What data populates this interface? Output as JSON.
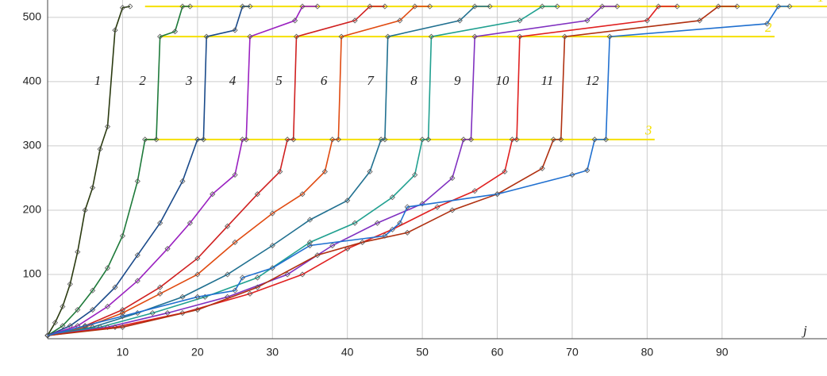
{
  "chart_data": {
    "type": "line",
    "x_label": "j",
    "xlim": [
      0,
      104
    ],
    "ylim": [
      0,
      527
    ],
    "xticks": [
      10,
      20,
      30,
      40,
      50,
      60,
      70,
      80,
      90
    ],
    "yticks": [
      100,
      200,
      300,
      400,
      500
    ],
    "grid": true,
    "reference_lines": [
      {
        "label": "1",
        "value": 517,
        "x": [
          13,
          104
        ],
        "color": "#f5e000"
      },
      {
        "label": "2",
        "value": 470,
        "x": [
          15,
          97
        ],
        "color": "#f5e000"
      },
      {
        "label": "3",
        "value": 310,
        "x": [
          13,
          81
        ],
        "color": "#f5e000"
      }
    ],
    "series": [
      {
        "name": "1",
        "color": "#2a3a10",
        "x": [
          0,
          1,
          2,
          3,
          4,
          5,
          6,
          7,
          8,
          9,
          10,
          11
        ],
        "values": [
          5,
          25,
          50,
          85,
          135,
          200,
          235,
          295,
          330,
          480,
          515,
          517
        ]
      },
      {
        "name": "2",
        "color": "#1e7a3a",
        "x": [
          0,
          2,
          4,
          6,
          8,
          10,
          12,
          13,
          14.5,
          15,
          17,
          18,
          19
        ],
        "values": [
          5,
          20,
          45,
          75,
          110,
          160,
          245,
          310,
          310,
          470,
          478,
          517,
          517
        ]
      },
      {
        "name": "3",
        "color": "#1a4a8a",
        "x": [
          0,
          3,
          6,
          9,
          12,
          15,
          18,
          20,
          20.8,
          21.2,
          25,
          26,
          27
        ],
        "values": [
          5,
          20,
          45,
          80,
          130,
          180,
          245,
          310,
          310,
          470,
          480,
          517,
          517
        ]
      },
      {
        "name": "4",
        "color": "#9a20c0",
        "x": [
          0,
          4,
          8,
          12,
          16,
          19,
          22,
          25,
          26,
          26.5,
          27,
          33,
          34,
          36
        ],
        "values": [
          5,
          20,
          50,
          90,
          140,
          180,
          225,
          255,
          310,
          310,
          470,
          495,
          517,
          517
        ]
      },
      {
        "name": "5",
        "color": "#d02020",
        "x": [
          0,
          5,
          10,
          15,
          20,
          24,
          28,
          31,
          32,
          32.8,
          33.2,
          41,
          43,
          45
        ],
        "values": [
          5,
          20,
          45,
          80,
          125,
          175,
          225,
          260,
          310,
          310,
          470,
          495,
          517,
          517
        ]
      },
      {
        "name": "6",
        "color": "#e04a10",
        "x": [
          0,
          5,
          10,
          15,
          20,
          25,
          30,
          34,
          37,
          38,
          38.8,
          39.2,
          47,
          49,
          51
        ],
        "values": [
          5,
          18,
          40,
          70,
          100,
          150,
          195,
          225,
          260,
          310,
          310,
          470,
          495,
          517,
          517
        ]
      },
      {
        "name": "7",
        "color": "#207090",
        "x": [
          0,
          6,
          12,
          18,
          24,
          30,
          35,
          40,
          43,
          44.5,
          45,
          45.4,
          55,
          57,
          59
        ],
        "values": [
          5,
          18,
          40,
          65,
          100,
          145,
          185,
          215,
          260,
          310,
          310,
          470,
          495,
          517,
          517
        ]
      },
      {
        "name": "8",
        "color": "#20a090",
        "x": [
          0,
          7,
          14,
          21,
          28,
          35,
          41,
          46,
          49,
          50,
          50.8,
          51.2,
          63,
          66,
          68
        ],
        "values": [
          5,
          18,
          40,
          65,
          95,
          150,
          180,
          220,
          255,
          310,
          310,
          470,
          495,
          517,
          517
        ]
      },
      {
        "name": "9",
        "color": "#8030c0",
        "x": [
          0,
          8,
          16,
          24,
          32,
          38,
          44,
          50,
          54,
          55.5,
          56.5,
          57,
          72,
          74,
          76
        ],
        "values": [
          5,
          18,
          40,
          65,
          100,
          145,
          180,
          210,
          250,
          310,
          310,
          470,
          495,
          517,
          517
        ]
      },
      {
        "name": "10",
        "color": "#e02020",
        "x": [
          0,
          9,
          18,
          27,
          34,
          40,
          46,
          52,
          57,
          61,
          62,
          62.6,
          63,
          80,
          81.5,
          84
        ],
        "values": [
          5,
          18,
          40,
          70,
          100,
          140,
          170,
          205,
          230,
          260,
          310,
          310,
          470,
          495,
          517,
          517
        ]
      },
      {
        "name": "11",
        "color": "#b03010",
        "x": [
          0,
          10,
          20,
          28,
          36,
          42,
          48,
          54,
          60,
          66,
          67.5,
          68.5,
          69,
          87,
          89.5,
          92
        ],
        "values": [
          5,
          18,
          45,
          80,
          130,
          150,
          165,
          200,
          225,
          265,
          310,
          310,
          470,
          495,
          517,
          517
        ]
      },
      {
        "name": "12",
        "color": "#2070d0",
        "x": [
          0,
          5,
          10,
          20,
          25,
          26,
          30,
          35,
          45,
          47,
          48,
          60,
          70,
          72,
          73,
          74.5,
          75,
          96,
          97.5,
          99
        ],
        "values": [
          5,
          20,
          35,
          65,
          75,
          95,
          110,
          145,
          160,
          180,
          205,
          225,
          255,
          262,
          310,
          310,
          470,
          490,
          517,
          517
        ]
      }
    ]
  }
}
